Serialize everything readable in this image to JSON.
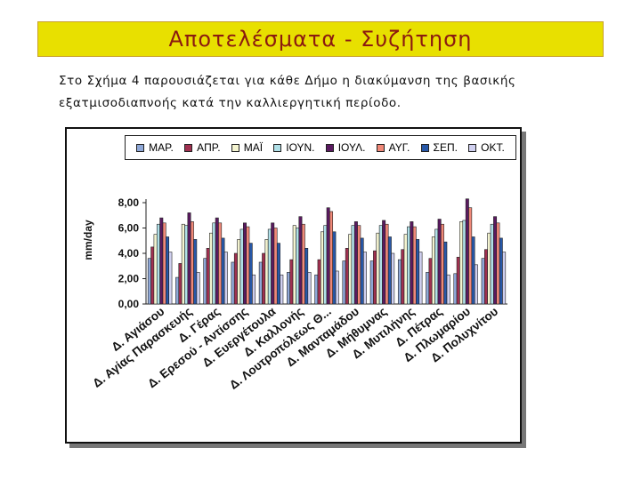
{
  "header": {
    "title": "Αποτελέσματα - Συζήτηση"
  },
  "intro": {
    "text": "Στο Σχήμα 4 παρουσιάζεται για κάθε Δήμο η διακύμανση της βασικής εξατμισοδιαπνοής κατά την καλλιεργητική περίοδο."
  },
  "chart_data": {
    "type": "bar",
    "ylabel": "mm/day",
    "ylim": [
      0,
      8
    ],
    "yticks": [
      "0,00",
      "2,00",
      "4,00",
      "6,00",
      "8,00"
    ],
    "ytick_values": [
      0,
      2,
      4,
      6,
      8
    ],
    "legend_position": "top",
    "categories": [
      "Δ. Αγιάσου",
      "Δ. Αγίας Παρασκευής",
      "Δ. Γέρας",
      "Δ. Ερεσού - Αντίσσης",
      "Δ. Ευεργέτουλα",
      "Δ. Καλλονής",
      "Δ. Λουτροπόλεως Θ...",
      "Δ. Μανταμάδου",
      "Δ. Μήθυμνας",
      "Δ. Μυτιλήνης",
      "Δ. Πέτρας",
      "Δ. Πλωμαρίου",
      "Δ. Πολυχνίτου"
    ],
    "series": [
      {
        "name": "ΜΑΡ.",
        "color": "#8fa8d8",
        "values": [
          3.6,
          2.1,
          3.6,
          3.3,
          3.3,
          2.5,
          2.3,
          3.4,
          3.4,
          3.5,
          2.5,
          2.4,
          3.6
        ]
      },
      {
        "name": "ΑΠΡ.",
        "color": "#a03050",
        "values": [
          4.5,
          3.2,
          4.4,
          4.0,
          4.0,
          3.5,
          3.5,
          4.4,
          4.2,
          4.3,
          3.6,
          3.7,
          4.3
        ]
      },
      {
        "name": "ΜΑΪ",
        "color": "#f4f4d0",
        "values": [
          5.5,
          6.3,
          5.6,
          5.1,
          5.1,
          6.2,
          5.7,
          5.5,
          5.6,
          5.5,
          5.3,
          6.5,
          5.6
        ]
      },
      {
        "name": "ΙΟΥΝ.",
        "color": "#b0e0e8",
        "values": [
          6.3,
          6.2,
          6.4,
          5.9,
          5.9,
          6.0,
          6.2,
          6.2,
          6.2,
          6.1,
          5.9,
          6.6,
          6.3
        ]
      },
      {
        "name": "ΙΟΥΛ.",
        "color": "#5a1a60",
        "values": [
          6.8,
          7.2,
          6.8,
          6.4,
          6.4,
          6.9,
          7.6,
          6.5,
          6.6,
          6.5,
          6.7,
          8.3,
          6.9
        ]
      },
      {
        "name": "ΑΥΓ.",
        "color": "#f08878",
        "values": [
          6.4,
          6.5,
          6.4,
          6.1,
          6.0,
          6.3,
          7.3,
          6.2,
          6.3,
          6.1,
          6.3,
          7.6,
          6.4
        ]
      },
      {
        "name": "ΣΕΠ.",
        "color": "#2858a8",
        "values": [
          5.3,
          5.1,
          5.2,
          4.8,
          4.8,
          4.4,
          5.7,
          5.2,
          5.3,
          5.1,
          4.9,
          5.3,
          5.2
        ]
      },
      {
        "name": "ΟΚΤ.",
        "color": "#d0d0f0",
        "values": [
          4.1,
          2.5,
          4.1,
          2.3,
          2.3,
          2.5,
          2.6,
          4.1,
          4.0,
          4.1,
          2.3,
          3.1,
          4.1
        ]
      }
    ]
  }
}
